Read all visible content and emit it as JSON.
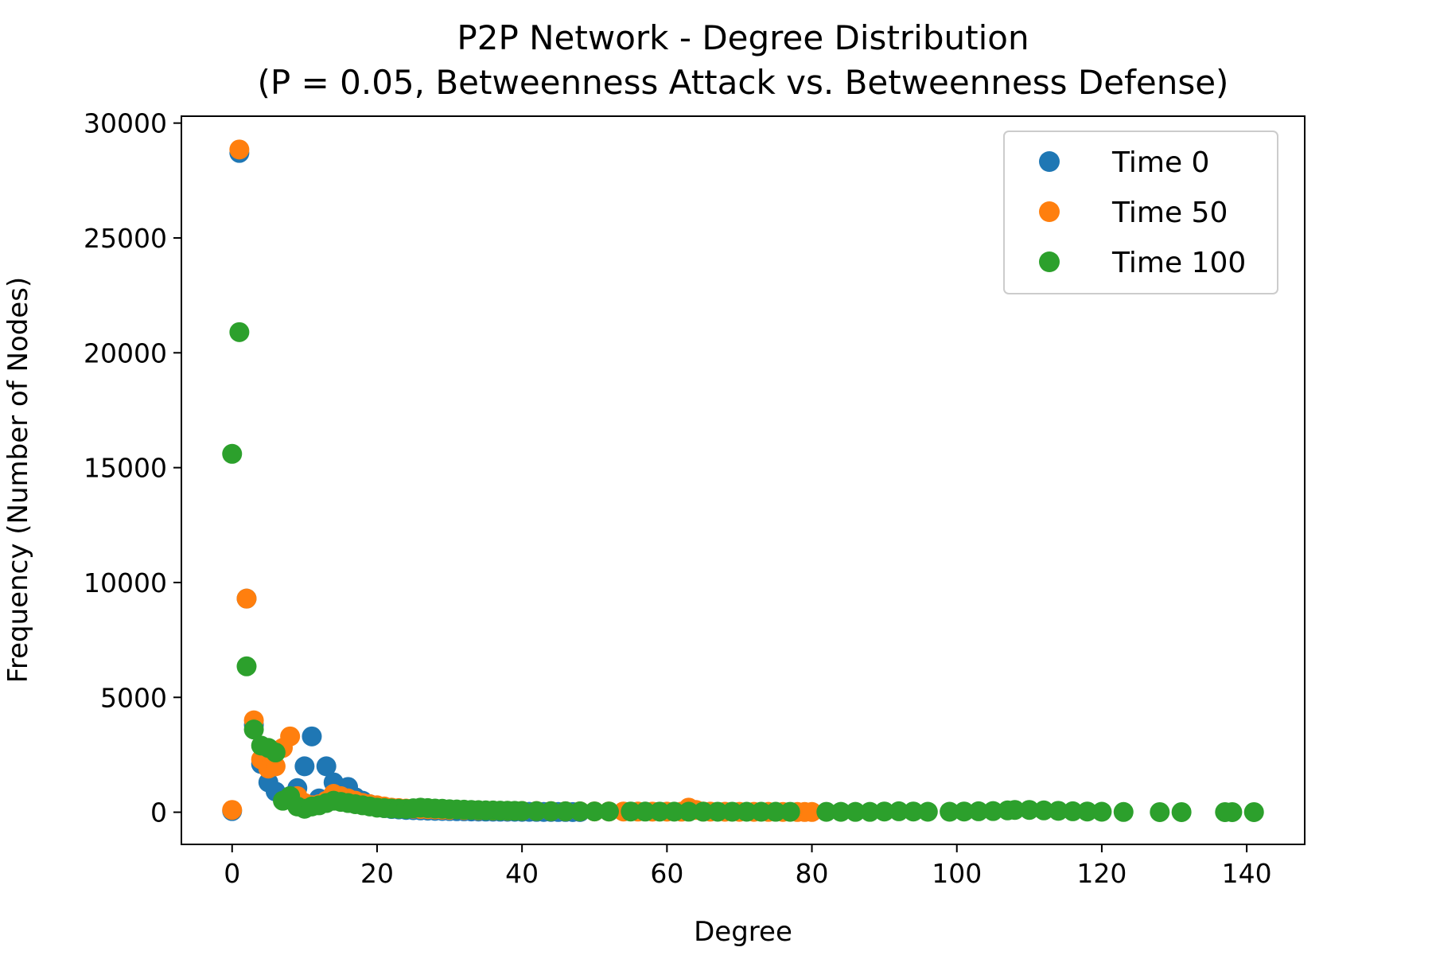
{
  "chart_data": {
    "type": "scatter",
    "title": [
      "P2P Network - Degree Distribution",
      "(P = 0.05, Betweenness Attack vs. Betweenness Defense)"
    ],
    "xlabel": "Degree",
    "ylabel": "Frequency (Number of Nodes)",
    "xlim": [
      -7,
      148
    ],
    "ylim": [
      -1400,
      30300
    ],
    "xticks": [
      0,
      20,
      40,
      60,
      80,
      100,
      120,
      140
    ],
    "yticks": [
      0,
      5000,
      10000,
      15000,
      20000,
      25000,
      30000
    ],
    "legend_position": "top-right",
    "grid": false,
    "series": [
      {
        "name": "Time 0",
        "color": "#1f77b4",
        "x": [
          0,
          1,
          2,
          3,
          4,
          5,
          6,
          7,
          8,
          9,
          10,
          11,
          12,
          13,
          14,
          15,
          16,
          17,
          18,
          19,
          20,
          21,
          22,
          23,
          24,
          25,
          26,
          27,
          28,
          29,
          30,
          31,
          32,
          33,
          34,
          35,
          36,
          37,
          38,
          39,
          40,
          41,
          42,
          43,
          44,
          45,
          46,
          47,
          48
        ],
        "y": [
          50,
          28700,
          9300,
          3800,
          2100,
          1300,
          900,
          600,
          700,
          1050,
          2000,
          3300,
          600,
          2000,
          1300,
          1000,
          1100,
          650,
          500,
          350,
          250,
          180,
          140,
          120,
          100,
          90,
          80,
          70,
          60,
          55,
          50,
          45,
          40,
          35,
          30,
          28,
          26,
          24,
          22,
          20,
          18,
          16,
          14,
          13,
          12,
          11,
          10,
          9,
          8
        ]
      },
      {
        "name": "Time 50",
        "color": "#ff7f0e",
        "x": [
          0,
          1,
          2,
          3,
          4,
          5,
          6,
          7,
          8,
          9,
          10,
          11,
          12,
          13,
          14,
          15,
          16,
          17,
          18,
          19,
          20,
          21,
          22,
          23,
          24,
          25,
          26,
          27,
          28,
          29,
          30,
          32,
          34,
          36,
          38,
          40,
          42,
          44,
          46,
          48,
          50,
          52,
          54,
          56,
          58,
          60,
          62,
          63,
          64,
          65,
          66,
          68,
          70,
          72,
          74,
          76,
          78,
          79,
          80
        ],
        "y": [
          100,
          28850,
          9300,
          4000,
          2300,
          1900,
          2000,
          2800,
          3300,
          700,
          400,
          300,
          350,
          500,
          800,
          700,
          600,
          500,
          400,
          350,
          300,
          250,
          200,
          180,
          160,
          150,
          140,
          130,
          120,
          110,
          100,
          90,
          80,
          70,
          60,
          55,
          50,
          45,
          40,
          38,
          35,
          32,
          30,
          28,
          26,
          25,
          24,
          200,
          100,
          30,
          25,
          20,
          18,
          16,
          14,
          12,
          10,
          10,
          10
        ]
      },
      {
        "name": "Time 100",
        "color": "#2ca02c",
        "x": [
          0,
          1,
          2,
          3,
          4,
          5,
          6,
          7,
          8,
          9,
          10,
          11,
          12,
          13,
          14,
          15,
          16,
          17,
          18,
          19,
          20,
          21,
          22,
          23,
          24,
          25,
          26,
          27,
          28,
          29,
          30,
          31,
          32,
          33,
          34,
          35,
          36,
          37,
          38,
          39,
          40,
          42,
          44,
          46,
          48,
          50,
          52,
          55,
          57,
          59,
          61,
          63,
          65,
          67,
          69,
          71,
          73,
          75,
          77,
          82,
          84,
          86,
          88,
          90,
          92,
          94,
          96,
          99,
          101,
          103,
          105,
          107,
          108,
          110,
          112,
          114,
          116,
          118,
          120,
          123,
          128,
          131,
          137,
          138,
          141
        ],
        "y": [
          15600,
          20900,
          6350,
          3600,
          2900,
          2800,
          2600,
          500,
          700,
          250,
          150,
          250,
          300,
          400,
          500,
          450,
          400,
          350,
          300,
          250,
          200,
          180,
          160,
          150,
          140,
          170,
          200,
          180,
          160,
          150,
          130,
          120,
          110,
          100,
          90,
          80,
          75,
          70,
          65,
          60,
          55,
          50,
          45,
          40,
          38,
          35,
          30,
          30,
          28,
          26,
          25,
          24,
          23,
          22,
          21,
          20,
          20,
          19,
          18,
          17,
          16,
          15,
          15,
          30,
          40,
          30,
          20,
          20,
          30,
          40,
          50,
          80,
          100,
          100,
          80,
          60,
          40,
          30,
          20,
          10,
          5,
          5,
          5,
          5,
          5
        ]
      }
    ]
  }
}
